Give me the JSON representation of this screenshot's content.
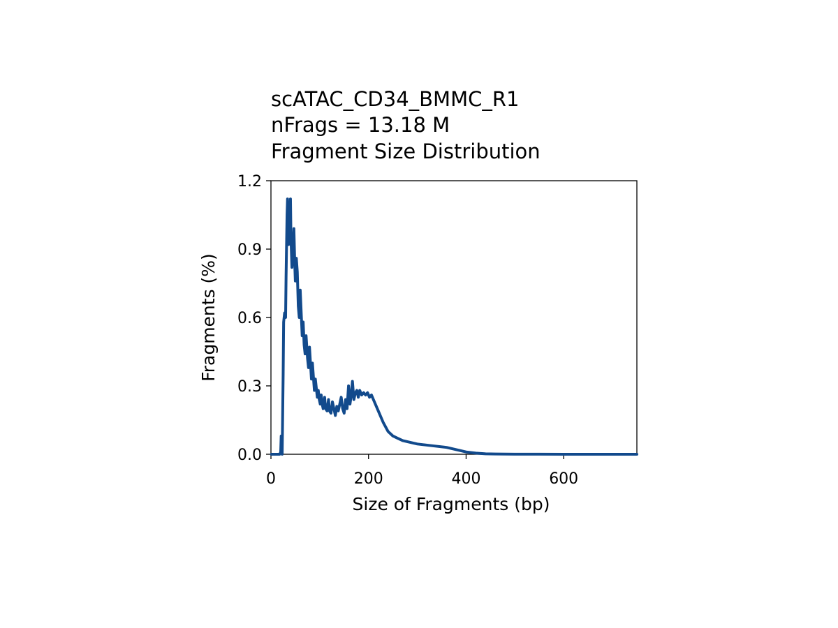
{
  "chart_data": {
    "type": "line",
    "title_lines": [
      "scATAC_CD34_BMMC_R1",
      "nFrags = 13.18 M",
      "Fragment Size Distribution"
    ],
    "xlabel": "Size of Fragments (bp)",
    "ylabel": "Fragments (%)",
    "xlim": [
      0,
      750
    ],
    "ylim": [
      0,
      1.2
    ],
    "xticks": [
      0,
      200,
      400,
      600
    ],
    "xtick_labels": [
      "0",
      "200",
      "400",
      "600"
    ],
    "yticks": [
      0,
      0.3,
      0.6,
      0.9,
      1.2
    ],
    "ytick_labels": [
      "0.0",
      "0.3",
      "0.6",
      "0.9",
      "1.2"
    ],
    "grid": false,
    "line_color": "#124A8C",
    "series": [
      {
        "x": [
          1,
          18,
          20,
          21,
          23,
          25,
          26,
          28,
          30,
          31,
          33,
          34,
          36,
          38,
          40,
          41,
          43,
          45,
          47,
          49,
          50,
          52,
          54,
          56,
          58,
          60,
          62,
          64,
          66,
          68,
          70,
          72,
          75,
          77,
          79,
          81,
          83,
          85,
          87,
          89,
          91,
          93,
          95,
          97,
          99,
          101,
          103,
          105,
          107,
          110,
          112,
          115,
          118,
          120,
          123,
          126,
          129,
          132,
          135,
          138,
          141,
          144,
          147,
          150,
          153,
          156,
          159,
          162,
          164,
          167,
          170,
          173,
          176,
          179,
          182,
          186,
          190,
          194,
          198,
          202,
          206,
          210,
          214,
          218,
          222,
          226,
          230,
          235,
          240,
          250,
          260,
          270,
          280,
          290,
          300,
          320,
          340,
          360,
          380,
          400,
          420,
          440,
          460,
          500,
          550,
          600,
          650,
          700,
          750
        ],
        "y": [
          0.0,
          0.0,
          0.01,
          0.08,
          0.0,
          0.35,
          0.58,
          0.62,
          0.6,
          0.78,
          1.05,
          1.12,
          0.92,
          1.0,
          1.12,
          0.95,
          0.82,
          0.9,
          0.99,
          0.82,
          0.76,
          0.86,
          0.8,
          0.65,
          0.6,
          0.72,
          0.62,
          0.52,
          0.58,
          0.48,
          0.44,
          0.52,
          0.42,
          0.38,
          0.47,
          0.4,
          0.33,
          0.4,
          0.34,
          0.28,
          0.33,
          0.29,
          0.25,
          0.28,
          0.24,
          0.22,
          0.26,
          0.22,
          0.2,
          0.25,
          0.2,
          0.19,
          0.24,
          0.19,
          0.18,
          0.23,
          0.2,
          0.17,
          0.21,
          0.19,
          0.22,
          0.25,
          0.2,
          0.18,
          0.24,
          0.2,
          0.3,
          0.22,
          0.25,
          0.32,
          0.24,
          0.27,
          0.28,
          0.25,
          0.28,
          0.26,
          0.27,
          0.26,
          0.27,
          0.25,
          0.26,
          0.24,
          0.22,
          0.2,
          0.18,
          0.16,
          0.14,
          0.12,
          0.1,
          0.08,
          0.07,
          0.06,
          0.055,
          0.05,
          0.045,
          0.04,
          0.035,
          0.03,
          0.02,
          0.01,
          0.005,
          0.002,
          0.001,
          0.0005,
          0.0002,
          0.0001,
          0.0,
          0.0,
          0.0
        ]
      }
    ]
  }
}
